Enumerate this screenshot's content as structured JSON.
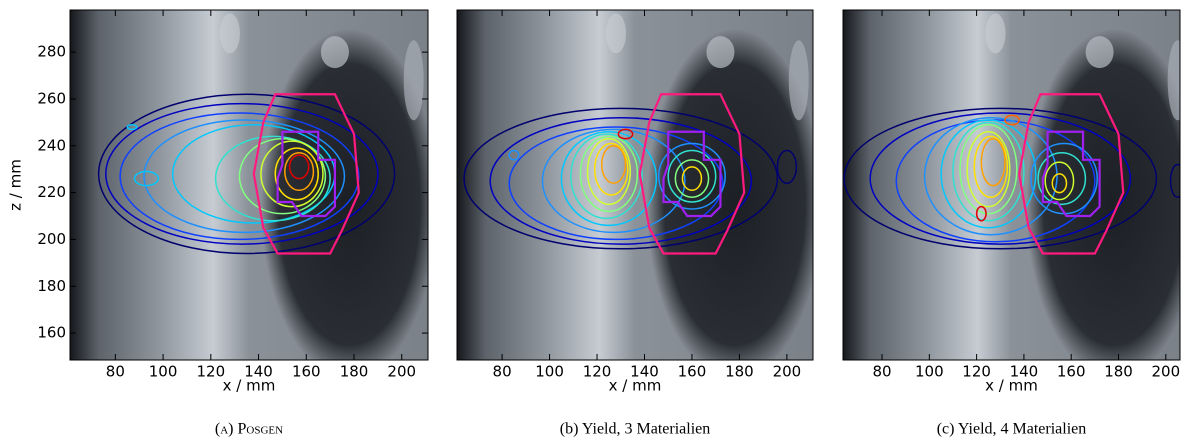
{
  "chart_data": [
    {
      "type": "contour",
      "caption": "(a) Posgen",
      "xlabel": "x / mm",
      "ylabel": "z / mm",
      "xlim": [
        61,
        211
      ],
      "ylim": [
        148.5,
        298
      ],
      "xticks": [
        80,
        100,
        120,
        140,
        160,
        180,
        200
      ],
      "yticks": [
        160,
        180,
        200,
        220,
        240,
        260,
        280
      ]
    },
    {
      "type": "contour",
      "caption": "(b) Yield, 3 Materialien",
      "xlabel": "x / mm",
      "xlim": [
        61,
        211
      ],
      "ylim": [
        148.5,
        298
      ],
      "xticks": [
        80,
        100,
        120,
        140,
        160,
        180,
        200
      ]
    },
    {
      "type": "contour",
      "caption": "(c) Yield, 4 Materialien",
      "xlabel": "x / mm",
      "xlim": [
        63.5,
        206
      ],
      "ylim": [
        148.5,
        298
      ],
      "xticks": [
        80,
        100,
        120,
        140,
        160,
        180,
        200
      ]
    }
  ]
}
